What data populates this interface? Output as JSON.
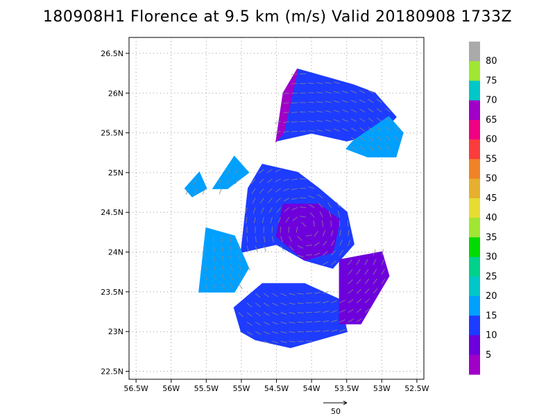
{
  "title": "180908H1 Florence at 9.5 km (m/s) Valid 20180908  1733Z",
  "chart_data": {
    "type": "heatmap",
    "title": "180908H1 Florence at 9.5 km (m/s) Valid 20180908  1733Z",
    "x_ticks": [
      {
        "value": -56.5,
        "label": "56.5W"
      },
      {
        "value": -56.0,
        "label": "56W"
      },
      {
        "value": -55.5,
        "label": "55.5W"
      },
      {
        "value": -55.0,
        "label": "55W"
      },
      {
        "value": -54.5,
        "label": "54.5W"
      },
      {
        "value": -54.0,
        "label": "54W"
      },
      {
        "value": -53.5,
        "label": "53.5W"
      },
      {
        "value": -53.0,
        "label": "53W"
      },
      {
        "value": -52.5,
        "label": "52.5W"
      }
    ],
    "y_ticks": [
      {
        "value": 22.5,
        "label": "22.5N"
      },
      {
        "value": 23.0,
        "label": "23N"
      },
      {
        "value": 23.5,
        "label": "23.5N"
      },
      {
        "value": 24.0,
        "label": "24N"
      },
      {
        "value": 24.5,
        "label": "24.5N"
      },
      {
        "value": 25.0,
        "label": "25N"
      },
      {
        "value": 25.5,
        "label": "25.5N"
      },
      {
        "value": 26.0,
        "label": "26N"
      },
      {
        "value": 26.5,
        "label": "26.5N"
      }
    ],
    "xlim": [
      -56.6,
      -52.4
    ],
    "ylim": [
      22.4,
      26.7
    ],
    "grid": true,
    "colorbar": {
      "labels": [
        "5",
        "10",
        "15",
        "20",
        "25",
        "30",
        "35",
        "40",
        "45",
        "50",
        "55",
        "60",
        "65",
        "70",
        "75",
        "80"
      ],
      "colors": [
        "#a000c8",
        "#6e00dc",
        "#1e3cff",
        "#00a0ff",
        "#00c8c8",
        "#00d28c",
        "#00dc00",
        "#a0e632",
        "#e6dc32",
        "#e6af2d",
        "#f08228",
        "#fa3c3c",
        "#f00082",
        "#a000c8",
        "#00c8c8",
        "#a0e632",
        "#aaaaaa"
      ]
    },
    "wind_regions": [
      {
        "speed_class": 15,
        "polygon": [
          [
            -55.0,
            24.0
          ],
          [
            -54.9,
            24.8
          ],
          [
            -54.7,
            25.1
          ],
          [
            -54.2,
            25.0
          ],
          [
            -53.9,
            24.8
          ],
          [
            -53.5,
            24.5
          ],
          [
            -53.4,
            24.1
          ],
          [
            -53.7,
            23.8
          ],
          [
            -54.1,
            23.9
          ],
          [
            -54.5,
            24.1
          ]
        ]
      },
      {
        "speed_class": 15,
        "polygon": [
          [
            -54.5,
            25.4
          ],
          [
            -54.4,
            26.0
          ],
          [
            -54.2,
            26.3
          ],
          [
            -53.8,
            26.2
          ],
          [
            -53.4,
            26.1
          ],
          [
            -53.1,
            26.0
          ],
          [
            -52.8,
            25.7
          ],
          [
            -53.0,
            25.5
          ],
          [
            -53.5,
            25.4
          ],
          [
            -54.0,
            25.5
          ]
        ]
      },
      {
        "speed_class": 20,
        "polygon": [
          [
            -53.4,
            25.4
          ],
          [
            -52.9,
            25.7
          ],
          [
            -52.7,
            25.5
          ],
          [
            -52.8,
            25.2
          ],
          [
            -53.2,
            25.2
          ],
          [
            -53.5,
            25.3
          ]
        ]
      },
      {
        "speed_class": 15,
        "polygon": [
          [
            -55.1,
            23.3
          ],
          [
            -54.7,
            23.6
          ],
          [
            -54.1,
            23.6
          ],
          [
            -53.6,
            23.4
          ],
          [
            -53.5,
            23.0
          ],
          [
            -53.9,
            22.9
          ],
          [
            -54.3,
            22.8
          ],
          [
            -54.8,
            22.9
          ],
          [
            -55.0,
            23.0
          ]
        ]
      },
      {
        "speed_class": 10,
        "polygon": [
          [
            -53.6,
            23.1
          ],
          [
            -53.6,
            23.9
          ],
          [
            -53.0,
            24.0
          ],
          [
            -52.9,
            23.7
          ],
          [
            -53.1,
            23.4
          ],
          [
            -53.3,
            23.1
          ]
        ]
      },
      {
        "speed_class": 10,
        "polygon": [
          [
            -54.5,
            24.2
          ],
          [
            -54.4,
            24.6
          ],
          [
            -53.9,
            24.6
          ],
          [
            -53.6,
            24.4
          ],
          [
            -53.7,
            24.0
          ],
          [
            -54.1,
            23.9
          ]
        ]
      },
      {
        "speed_class": 5,
        "polygon": [
          [
            -54.5,
            25.4
          ],
          [
            -54.4,
            26.0
          ],
          [
            -54.2,
            26.3
          ],
          [
            -54.3,
            25.9
          ],
          [
            -54.4,
            25.5
          ]
        ]
      },
      {
        "speed_class": 20,
        "polygon": [
          [
            -55.6,
            23.5
          ],
          [
            -55.5,
            24.3
          ],
          [
            -55.1,
            24.2
          ],
          [
            -54.9,
            23.8
          ],
          [
            -55.1,
            23.5
          ]
        ]
      },
      {
        "speed_class": 20,
        "polygon": [
          [
            -55.4,
            24.8
          ],
          [
            -55.1,
            25.2
          ],
          [
            -54.9,
            25.0
          ],
          [
            -55.2,
            24.8
          ]
        ]
      },
      {
        "speed_class": 20,
        "polygon": [
          [
            -55.8,
            24.8
          ],
          [
            -55.6,
            25.0
          ],
          [
            -55.5,
            24.8
          ],
          [
            -55.7,
            24.7
          ]
        ]
      }
    ],
    "wind_vector_reference": {
      "value": 50,
      "label": "50"
    }
  }
}
